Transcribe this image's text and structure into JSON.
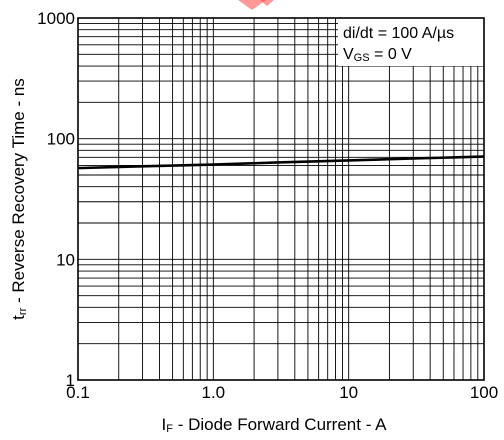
{
  "chart_data": {
    "type": "line",
    "xlabel": {
      "symbol": "I",
      "sub": "F",
      "rest": " - Diode Forward Current - A"
    },
    "ylabel": {
      "symbol": "t",
      "sub": "rr",
      "rest": " - Reverse Recovery Time - ns"
    },
    "xscale": "log",
    "yscale": "log",
    "xlim": [
      0.1,
      100
    ],
    "ylim": [
      1,
      1000
    ],
    "xticks": [
      {
        "value": 0.1,
        "label": "0.1"
      },
      {
        "value": 1,
        "label": "1.0"
      },
      {
        "value": 10,
        "label": "10"
      },
      {
        "value": 100,
        "label": "100"
      }
    ],
    "yticks": [
      {
        "value": 1,
        "label": "1"
      },
      {
        "value": 10,
        "label": "10"
      },
      {
        "value": 100,
        "label": "100"
      },
      {
        "value": 1000,
        "label": "1000"
      }
    ],
    "grid": true,
    "annotations": {
      "didt": "di/dt = 100 A/µs",
      "vgs_symbol": "V",
      "vgs_sub": "GS",
      "vgs_rest": " = 0 V"
    },
    "series": [
      {
        "x": [
          0.1,
          0.3,
          1,
          3,
          10,
          30,
          100
        ],
        "y": [
          57,
          59,
          61,
          63.5,
          66,
          68.5,
          71
        ]
      }
    ]
  }
}
